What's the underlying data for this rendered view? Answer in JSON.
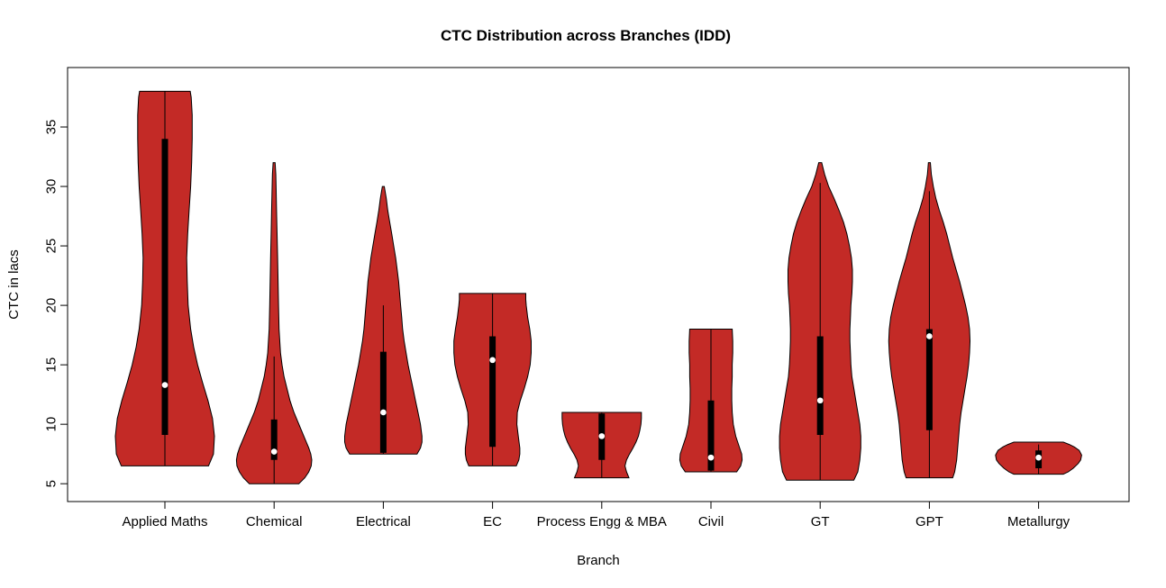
{
  "page": {
    "background": "#ffffff"
  },
  "chart_data": {
    "type": "violin",
    "title": "CTC Distribution across Branches (IDD)",
    "xlabel": "Branch",
    "ylabel": "CTC in lacs",
    "ylim": [
      3.5,
      40
    ],
    "yticks": [
      5,
      10,
      15,
      20,
      25,
      30,
      35
    ],
    "grid": false,
    "legend": "none",
    "violin_fill": "#C32A26",
    "violin_stroke": "#000000",
    "box_color": "#000000",
    "median_color": "#ffffff",
    "categories": [
      "Applied Maths",
      "Chemical",
      "Electrical",
      "EC",
      "Process Engg & MBA",
      "Civil",
      "GT",
      "GPT",
      "Metallurgy"
    ],
    "series": [
      {
        "name": "Applied Maths",
        "median": 13.3,
        "q1": 9.1,
        "q3": 34.0,
        "whisker_low": 6.5,
        "whisker_high": 38.0,
        "profile": [
          [
            6.5,
            0.88
          ],
          [
            7.5,
            0.98
          ],
          [
            9,
            1.0
          ],
          [
            10.5,
            0.96
          ],
          [
            12,
            0.87
          ],
          [
            13.5,
            0.76
          ],
          [
            15,
            0.66
          ],
          [
            16.5,
            0.58
          ],
          [
            18,
            0.52
          ],
          [
            20,
            0.47
          ],
          [
            22,
            0.45
          ],
          [
            24,
            0.44
          ],
          [
            26,
            0.46
          ],
          [
            28,
            0.49
          ],
          [
            30,
            0.52
          ],
          [
            32,
            0.54
          ],
          [
            34,
            0.55
          ],
          [
            36,
            0.55
          ],
          [
            37.5,
            0.53
          ],
          [
            38,
            0.51
          ]
        ]
      },
      {
        "name": "Chemical",
        "median": 7.7,
        "q1": 7.0,
        "q3": 10.4,
        "whisker_low": 5.0,
        "whisker_high": 15.7,
        "profile": [
          [
            5,
            0.5
          ],
          [
            5.5,
            0.62
          ],
          [
            6,
            0.7
          ],
          [
            6.5,
            0.75
          ],
          [
            7,
            0.76
          ],
          [
            7.5,
            0.74
          ],
          [
            8,
            0.7
          ],
          [
            9,
            0.6
          ],
          [
            10,
            0.5
          ],
          [
            11,
            0.4
          ],
          [
            12,
            0.32
          ],
          [
            13,
            0.26
          ],
          [
            14,
            0.2
          ],
          [
            15,
            0.16
          ],
          [
            16,
            0.13
          ],
          [
            18,
            0.1
          ],
          [
            20,
            0.09
          ],
          [
            22,
            0.08
          ],
          [
            24,
            0.07
          ],
          [
            26,
            0.06
          ],
          [
            28,
            0.05
          ],
          [
            30,
            0.04
          ],
          [
            31,
            0.035
          ],
          [
            32,
            0.02
          ]
        ]
      },
      {
        "name": "Electrical",
        "median": 11.0,
        "q1": 7.6,
        "q3": 16.1,
        "whisker_low": 7.5,
        "whisker_high": 20.0,
        "profile": [
          [
            7.5,
            0.68
          ],
          [
            8,
            0.75
          ],
          [
            8.5,
            0.78
          ],
          [
            9,
            0.78
          ],
          [
            10,
            0.75
          ],
          [
            11,
            0.7
          ],
          [
            12,
            0.65
          ],
          [
            13,
            0.6
          ],
          [
            14,
            0.55
          ],
          [
            15,
            0.5
          ],
          [
            16,
            0.46
          ],
          [
            17,
            0.42
          ],
          [
            18,
            0.39
          ],
          [
            19,
            0.37
          ],
          [
            20,
            0.35
          ],
          [
            21,
            0.33
          ],
          [
            22,
            0.31
          ],
          [
            23,
            0.28
          ],
          [
            24,
            0.25
          ],
          [
            25,
            0.21
          ],
          [
            26,
            0.17
          ],
          [
            27,
            0.13
          ],
          [
            28,
            0.09
          ],
          [
            29,
            0.06
          ],
          [
            30,
            0.02
          ]
        ]
      },
      {
        "name": "EC",
        "median": 15.4,
        "q1": 8.1,
        "q3": 17.4,
        "whisker_low": 6.5,
        "whisker_high": 21.0,
        "profile": [
          [
            6.5,
            0.48
          ],
          [
            7,
            0.53
          ],
          [
            7.5,
            0.55
          ],
          [
            8,
            0.55
          ],
          [
            9,
            0.52
          ],
          [
            10,
            0.49
          ],
          [
            11,
            0.5
          ],
          [
            12,
            0.56
          ],
          [
            13,
            0.64
          ],
          [
            14,
            0.71
          ],
          [
            15,
            0.76
          ],
          [
            16,
            0.78
          ],
          [
            17,
            0.78
          ],
          [
            18,
            0.75
          ],
          [
            19,
            0.71
          ],
          [
            20,
            0.68
          ],
          [
            20.5,
            0.67
          ],
          [
            21,
            0.67
          ]
        ]
      },
      {
        "name": "Process Engg & MBA",
        "median": 9.0,
        "q1": 7.0,
        "q3": 10.9,
        "whisker_low": 5.5,
        "whisker_high": 11.0,
        "profile": [
          [
            5.5,
            0.55
          ],
          [
            6,
            0.5
          ],
          [
            6.5,
            0.47
          ],
          [
            7,
            0.5
          ],
          [
            7.5,
            0.56
          ],
          [
            8,
            0.63
          ],
          [
            8.5,
            0.69
          ],
          [
            9,
            0.74
          ],
          [
            9.5,
            0.77
          ],
          [
            10,
            0.79
          ],
          [
            10.5,
            0.8
          ],
          [
            11,
            0.8
          ]
        ]
      },
      {
        "name": "Civil",
        "median": 7.2,
        "q1": 6.1,
        "q3": 12.0,
        "whisker_low": 6.0,
        "whisker_high": 18.0,
        "profile": [
          [
            6,
            0.52
          ],
          [
            6.5,
            0.6
          ],
          [
            7,
            0.63
          ],
          [
            7.5,
            0.62
          ],
          [
            8,
            0.58
          ],
          [
            8.5,
            0.54
          ],
          [
            9,
            0.5
          ],
          [
            10,
            0.45
          ],
          [
            11,
            0.43
          ],
          [
            12,
            0.42
          ],
          [
            13,
            0.42
          ],
          [
            14,
            0.43
          ],
          [
            15,
            0.43
          ],
          [
            16,
            0.44
          ],
          [
            17,
            0.44
          ],
          [
            18,
            0.43
          ]
        ]
      },
      {
        "name": "GT",
        "median": 12.0,
        "q1": 9.1,
        "q3": 17.4,
        "whisker_low": 5.3,
        "whisker_high": 30.3,
        "profile": [
          [
            5.3,
            0.68
          ],
          [
            6,
            0.76
          ],
          [
            7,
            0.8
          ],
          [
            8,
            0.82
          ],
          [
            9,
            0.82
          ],
          [
            10,
            0.8
          ],
          [
            11,
            0.76
          ],
          [
            12,
            0.72
          ],
          [
            13,
            0.68
          ],
          [
            14,
            0.64
          ],
          [
            15,
            0.62
          ],
          [
            16,
            0.61
          ],
          [
            17,
            0.6
          ],
          [
            18,
            0.6
          ],
          [
            19,
            0.61
          ],
          [
            20,
            0.62
          ],
          [
            21,
            0.64
          ],
          [
            22,
            0.65
          ],
          [
            23,
            0.65
          ],
          [
            24,
            0.63
          ],
          [
            25,
            0.59
          ],
          [
            26,
            0.54
          ],
          [
            27,
            0.47
          ],
          [
            28,
            0.38
          ],
          [
            29,
            0.28
          ],
          [
            30,
            0.17
          ],
          [
            31,
            0.09
          ],
          [
            32,
            0.03
          ]
        ]
      },
      {
        "name": "GPT",
        "median": 17.4,
        "q1": 9.5,
        "q3": 18.0,
        "whisker_low": 5.5,
        "whisker_high": 29.6,
        "profile": [
          [
            5.5,
            0.47
          ],
          [
            6,
            0.51
          ],
          [
            7,
            0.55
          ],
          [
            8,
            0.57
          ],
          [
            9,
            0.59
          ],
          [
            10,
            0.61
          ],
          [
            11,
            0.64
          ],
          [
            12,
            0.68
          ],
          [
            13,
            0.72
          ],
          [
            14,
            0.76
          ],
          [
            15,
            0.79
          ],
          [
            16,
            0.81
          ],
          [
            17,
            0.82
          ],
          [
            18,
            0.81
          ],
          [
            19,
            0.78
          ],
          [
            20,
            0.73
          ],
          [
            21,
            0.67
          ],
          [
            22,
            0.61
          ],
          [
            23,
            0.54
          ],
          [
            24,
            0.47
          ],
          [
            25,
            0.41
          ],
          [
            26,
            0.35
          ],
          [
            27,
            0.28
          ],
          [
            28,
            0.2
          ],
          [
            29,
            0.13
          ],
          [
            30,
            0.08
          ],
          [
            31,
            0.04
          ],
          [
            32,
            0.02
          ]
        ]
      },
      {
        "name": "Metallurgy",
        "median": 7.2,
        "q1": 6.3,
        "q3": 7.8,
        "whisker_low": 5.8,
        "whisker_high": 8.3,
        "profile": [
          [
            5.8,
            0.5
          ],
          [
            6,
            0.6
          ],
          [
            6.3,
            0.7
          ],
          [
            6.7,
            0.8
          ],
          [
            7,
            0.85
          ],
          [
            7.4,
            0.87
          ],
          [
            7.8,
            0.82
          ],
          [
            8.1,
            0.72
          ],
          [
            8.3,
            0.62
          ],
          [
            8.5,
            0.5
          ]
        ]
      }
    ]
  }
}
